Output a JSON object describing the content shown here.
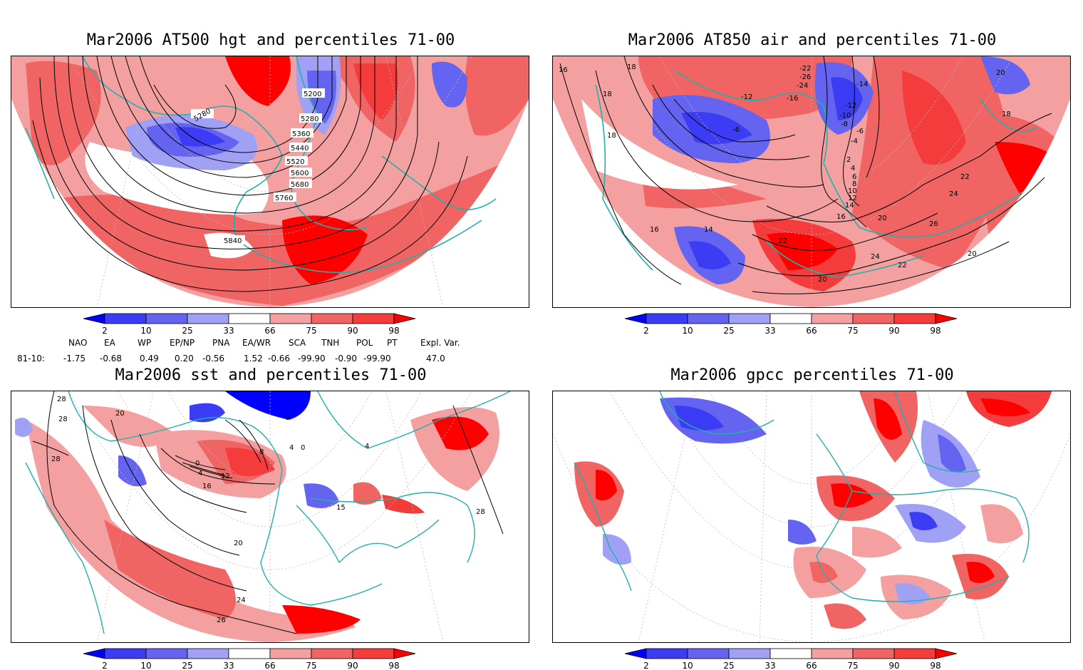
{
  "panels": [
    {
      "title": "Mar2006 AT500 hgt and percentiles 71-00",
      "contour_labels": [
        "5200",
        "5280",
        "5280",
        "5360",
        "5440",
        "5520",
        "5600",
        "5680",
        "5760",
        "5840"
      ]
    },
    {
      "title": "Mar2006 AT850 air and percentiles 71-00",
      "contour_labels": [
        "16",
        "18",
        "18",
        "18",
        "16",
        "14",
        "-22",
        "-26",
        "-24",
        "-12",
        "-16",
        "-14",
        "-12",
        "-10",
        "-8",
        "-6",
        "-6",
        "-4",
        "2",
        "4",
        "6",
        "8",
        "10",
        "12",
        "14",
        "16",
        "20",
        "22",
        "24",
        "26",
        "22",
        "22",
        "24",
        "20",
        "20",
        "18",
        "20"
      ]
    },
    {
      "title": "Mar2006 sst and percentiles 71-00",
      "contour_labels": [
        "28",
        "28",
        "20",
        "28",
        "0",
        "0",
        "4",
        "8",
        "4",
        "12",
        "16",
        "0",
        "20",
        "24",
        "26",
        "28",
        "4",
        "15"
      ]
    },
    {
      "title": "Mar2006 gpcc percentiles 71-00",
      "contour_labels": []
    }
  ],
  "colorbar": {
    "labels": [
      "2",
      "10",
      "25",
      "33",
      "66",
      "75",
      "90",
      "98"
    ],
    "colors": [
      "#0000ff",
      "#3c3cf5",
      "#6464f0",
      "#a0a0f5",
      "#ffffff",
      "#f5a0a0",
      "#f06464",
      "#f53c3c",
      "#ff0000"
    ]
  },
  "indices": {
    "header": [
      "NAO",
      "EA",
      "WP",
      "EP/NP",
      "PNA",
      "EA/WR",
      "SCA",
      "TNH",
      "POL",
      "PT",
      "Expl. Var."
    ],
    "row_label": "81-10:",
    "values": [
      "-1.75",
      "-0.68",
      "0.49",
      "0.20",
      "-0.56",
      "1.52",
      "-0.66",
      "-99.90",
      "-0.90",
      "-99.90",
      "47.0"
    ]
  }
}
